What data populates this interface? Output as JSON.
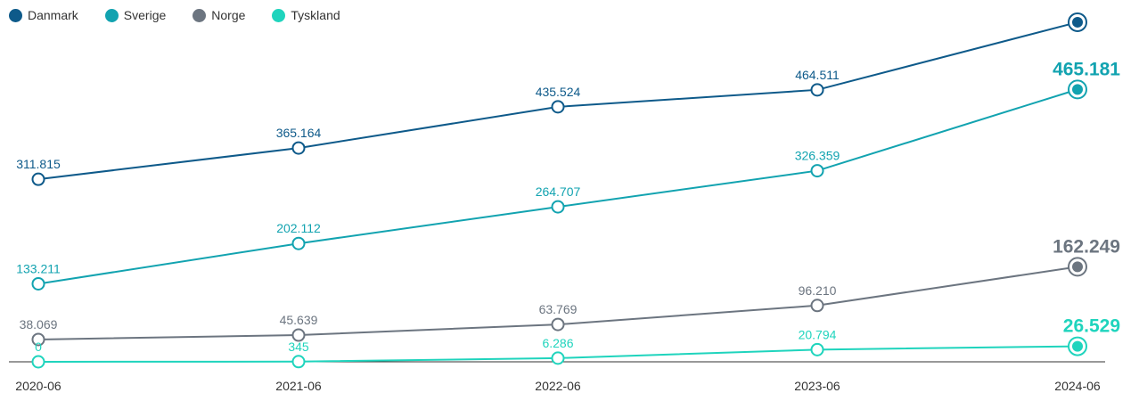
{
  "chart_data": {
    "type": "line",
    "title": "",
    "xlabel": "",
    "ylabel": "",
    "categories": [
      "2020-06",
      "2021-06",
      "2022-06",
      "2023-06",
      "2024-06"
    ],
    "legend_position": "top-left",
    "grid": false,
    "series": [
      {
        "name": "Danmark",
        "color": "#0e5a8a",
        "values": [
          311815,
          365164,
          435524,
          464511,
          580000
        ],
        "labels": [
          "311.815",
          "365.164",
          "435.524",
          "464.511",
          ""
        ]
      },
      {
        "name": "Sverige",
        "color": "#12a3b0",
        "values": [
          133211,
          202112,
          264707,
          326359,
          465181
        ],
        "labels": [
          "133.211",
          "202.112",
          "264.707",
          "326.359",
          "465.181"
        ]
      },
      {
        "name": "Norge",
        "color": "#6c7580",
        "values": [
          38069,
          45639,
          63769,
          96210,
          162249
        ],
        "labels": [
          "38.069",
          "45.639",
          "63.769",
          "96.210",
          "162.249"
        ]
      },
      {
        "name": "Tyskland",
        "color": "#1fd4bd",
        "values": [
          0,
          345,
          6286,
          20794,
          26529
        ],
        "labels": [
          "0",
          "345",
          "6.286",
          "20.794",
          "26.529"
        ]
      }
    ]
  }
}
